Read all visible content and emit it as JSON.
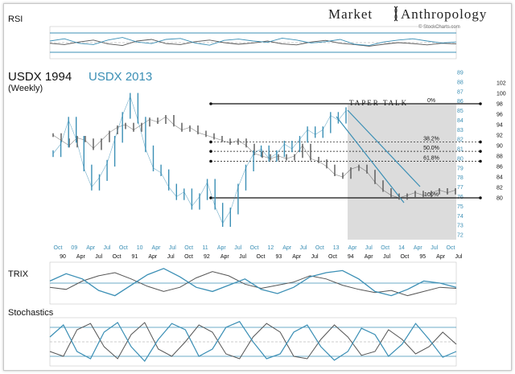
{
  "branding": {
    "brand_left": "Market",
    "brand_right": "Anthropology",
    "source": "© StockCharts.com"
  },
  "panels": {
    "rsi_label": "RSI",
    "trix_label": "TRIX",
    "stoch_label": "Stochastics"
  },
  "colors": {
    "primary": "#3b8fb5",
    "secondary": "#555555",
    "shade": "#dcdcdc",
    "fib_line": "#111111",
    "background": "#ffffff"
  },
  "chart_data": {
    "type": "line",
    "title_1994": "USDX 1994",
    "title_2013": "USDX 2013",
    "subtitle": "(Weekly)",
    "annotation": "TAPER TALK",
    "series": [
      {
        "name": "USDX 1994",
        "color": "#555555",
        "axis": "right",
        "ylim": [
          72,
          104
        ],
        "x": [
          0,
          10,
          20,
          30,
          40,
          50,
          60,
          70,
          80,
          90,
          100,
          110,
          120,
          130,
          140,
          150,
          160,
          170,
          180,
          190,
          200,
          210,
          220,
          230,
          240,
          250,
          260,
          270,
          280,
          290,
          300,
          310,
          320,
          330,
          340,
          350,
          360,
          370,
          380,
          390,
          400,
          410,
          420,
          430,
          440,
          450,
          460,
          470,
          480,
          490,
          500
        ],
        "values": [
          92,
          91,
          90,
          91.5,
          91,
          89.5,
          91,
          92.5,
          93.5,
          94,
          93,
          94,
          95,
          94.5,
          95.5,
          94,
          93,
          93.5,
          92.5,
          92,
          91.5,
          91,
          90.5,
          91,
          90,
          88.5,
          88,
          87.5,
          88,
          87.5,
          88,
          90,
          87.5,
          87,
          86,
          84.5,
          84,
          85.5,
          86,
          85,
          83,
          81.5,
          80.5,
          80,
          80.5,
          81,
          80.5,
          81,
          81.5,
          81,
          81.5
        ]
      },
      {
        "name": "USDX 2013",
        "color": "#3b8fb5",
        "axis": "left",
        "ylim": [
          71.5,
          89
        ],
        "x": [
          0,
          10,
          20,
          30,
          40,
          50,
          60,
          70,
          80,
          90,
          100,
          110,
          120,
          130,
          140,
          150,
          160,
          170,
          180,
          190,
          200,
          210,
          220,
          230,
          240,
          250,
          260,
          270,
          280,
          290,
          300,
          310,
          320,
          330,
          340,
          350,
          360,
          370,
          380
        ],
        "values": [
          80.5,
          81.5,
          84,
          82,
          79,
          77,
          78,
          79.5,
          82,
          84.5,
          86.5,
          84,
          81,
          79,
          78.5,
          77,
          76,
          76.5,
          75,
          76,
          77.5,
          75,
          73.2,
          74.5,
          77,
          79,
          80.5,
          81,
          80,
          80.5,
          81.5,
          81,
          82,
          83,
          82.5,
          83,
          84.5,
          84,
          85
        ]
      }
    ],
    "left_axis": {
      "ticks": [
        "89",
        "88",
        "87",
        "86",
        "85",
        "84",
        "83",
        "82",
        "81",
        "80",
        "79",
        "78",
        "77",
        "76",
        "75",
        "74",
        "73",
        "72"
      ],
      "values": [
        89,
        88,
        87,
        86,
        85,
        84,
        83,
        82,
        81,
        80,
        79,
        78,
        77,
        76,
        75,
        74,
        73,
        72
      ]
    },
    "right_axis": {
      "ticks": [
        "102",
        "100",
        "98",
        "96",
        "94",
        "92",
        "90",
        "88",
        "86",
        "84",
        "82",
        "80"
      ],
      "values": [
        102,
        100,
        98,
        96,
        94,
        92,
        90,
        88,
        86,
        84,
        82,
        80
      ]
    },
    "fib_levels": [
      {
        "label": "0%",
        "value": 98
      },
      {
        "label": "38.2%",
        "value": 90.7
      },
      {
        "label": "50.0%",
        "value": 88.9
      },
      {
        "label": "61.8%",
        "value": 87.0
      },
      {
        "label": "100%",
        "value": 80
      }
    ],
    "x_axis_top": [
      "Oct",
      "09",
      "Apr",
      "Jul",
      "Oct",
      "10",
      "Apr",
      "Jul",
      "Oct",
      "11",
      "Apr",
      "Jul",
      "Oct",
      "12",
      "Apr",
      "Jul",
      "Oct",
      "13",
      "Apr",
      "Jul",
      "Oct",
      "14",
      "Apr",
      "Jul",
      "Oct"
    ],
    "x_axis_bottom": [
      "90",
      "Apr",
      "Jul",
      "Oct",
      "91",
      "Apr",
      "Jul",
      "Oct",
      "92",
      "Apr",
      "Jul",
      "Oct",
      "93",
      "Apr",
      "Jul",
      "Oct",
      "94",
      "Apr",
      "Jul",
      "Oct",
      "95",
      "Apr",
      "Jul"
    ],
    "rsi": {
      "ylim": [
        0,
        100
      ],
      "blue": [
        55,
        62,
        48,
        44,
        58,
        66,
        52,
        47,
        60,
        63,
        49,
        42,
        57,
        61,
        55,
        51,
        64,
        58,
        49,
        53,
        60,
        45,
        41,
        52,
        58,
        62,
        55,
        49,
        52
      ],
      "gray": [
        48,
        44,
        52,
        58,
        46,
        41,
        55,
        60,
        47,
        44,
        53,
        58,
        50,
        45,
        49,
        55,
        46,
        43,
        52,
        57,
        48,
        44,
        39,
        45,
        50,
        47,
        43,
        48,
        46
      ]
    },
    "trix": {
      "ylim": [
        -1,
        1
      ],
      "blue": [
        0.1,
        0.45,
        0.2,
        -0.35,
        -0.6,
        -0.1,
        0.4,
        0.7,
        0.3,
        -0.2,
        -0.4,
        -0.1,
        0.2,
        -0.3,
        -0.5,
        -0.2,
        0.3,
        0.5,
        0.6,
        0.2,
        -0.4,
        -0.6,
        -0.3,
        0.1,
        0.0,
        -0.2
      ],
      "gray": [
        -0.2,
        -0.3,
        0.1,
        0.35,
        0.5,
        0.2,
        -0.15,
        -0.4,
        -0.2,
        0.25,
        0.55,
        0.35,
        -0.05,
        -0.25,
        -0.1,
        0.05,
        0.35,
        0.2,
        -0.1,
        -0.3,
        -0.45,
        -0.35,
        -0.6,
        -0.4,
        -0.2,
        -0.25
      ]
    },
    "stochastics": {
      "ylim": [
        0,
        100
      ],
      "blue": [
        60,
        85,
        30,
        15,
        70,
        90,
        40,
        10,
        55,
        88,
        75,
        20,
        35,
        80,
        92,
        50,
        15,
        25,
        70,
        85,
        40,
        12,
        30,
        78,
        65,
        20,
        45,
        88,
        55,
        18,
        30
      ],
      "gray": [
        30,
        20,
        75,
        88,
        40,
        15,
        65,
        90,
        35,
        20,
        50,
        85,
        70,
        25,
        15,
        60,
        88,
        70,
        20,
        15,
        55,
        85,
        60,
        22,
        30,
        75,
        55,
        25,
        40,
        70,
        45
      ]
    }
  }
}
